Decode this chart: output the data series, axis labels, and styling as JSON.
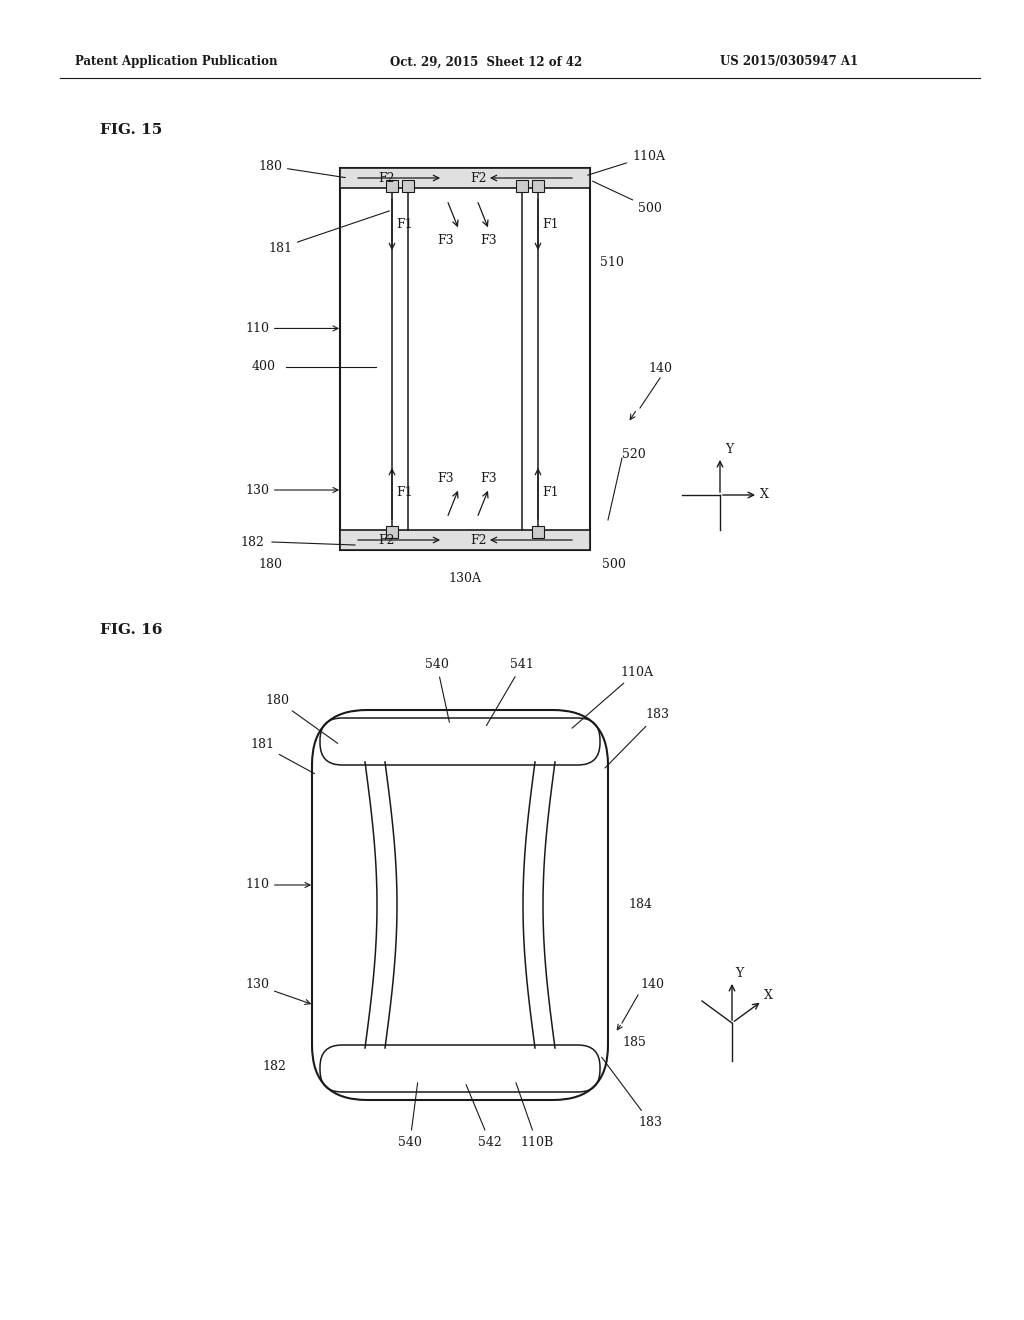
{
  "bg_color": "#ffffff",
  "header_left": "Patent Application Publication",
  "header_mid": "Oct. 29, 2015  Sheet 12 of 42",
  "header_right": "US 2015/0305947 A1",
  "fig15_label": "FIG. 15",
  "fig16_label": "FIG. 16",
  "lw": 1.2,
  "black": "#1a1a1a",
  "fs": 9,
  "fs_fig": 11
}
